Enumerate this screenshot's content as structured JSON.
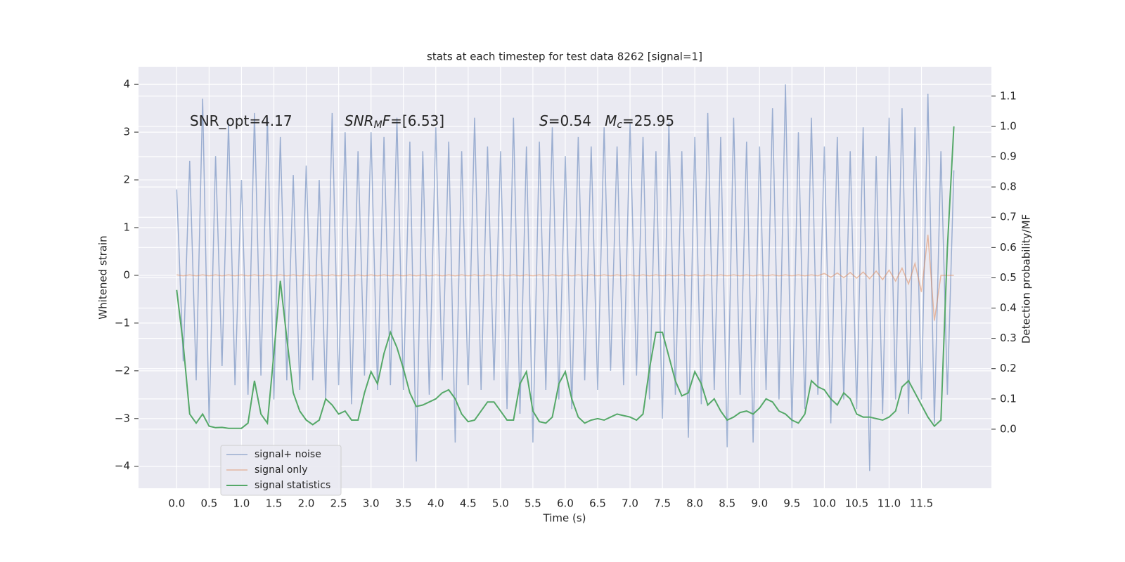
{
  "chart_data": {
    "type": "line",
    "title": "stats at each timestep for test data 8262 [signal=1]",
    "xlabel": "Time (s)",
    "ylabel": "Whitened strain",
    "y2label": "Detection probability/MF",
    "annotations": [
      [
        {
          "text": "SNR_opt=4.17",
          "style": "normal"
        }
      ],
      [
        {
          "text": "SNR",
          "style": "italic"
        },
        {
          "text": "M",
          "style": "sub"
        },
        {
          "text": "F",
          "style": "italic"
        },
        {
          "text": "=[6.53]",
          "style": "normal"
        }
      ],
      [
        {
          "text": "S",
          "style": "italic"
        },
        {
          "text": "=0.54   ",
          "style": "normal"
        },
        {
          "text": "M",
          "style": "italic"
        },
        {
          "text": "c",
          "style": "sub"
        },
        {
          "text": "=25.95",
          "style": "normal"
        }
      ]
    ],
    "x": [
      0,
      0.1,
      0.2,
      0.3,
      0.4,
      0.5,
      0.6,
      0.7,
      0.8,
      0.9,
      1,
      1.1,
      1.2,
      1.3,
      1.4,
      1.5,
      1.6,
      1.7,
      1.8,
      1.9,
      2,
      2.1,
      2.2,
      2.3,
      2.4,
      2.5,
      2.6,
      2.7,
      2.8,
      2.9,
      3,
      3.1,
      3.2,
      3.3,
      3.4,
      3.5,
      3.6,
      3.7,
      3.8,
      3.9,
      4,
      4.1,
      4.2,
      4.3,
      4.4,
      4.5,
      4.6,
      4.7,
      4.8,
      4.9,
      5,
      5.1,
      5.2,
      5.3,
      5.4,
      5.5,
      5.6,
      5.7,
      5.8,
      5.9,
      6,
      6.1,
      6.2,
      6.3,
      6.4,
      6.5,
      6.6,
      6.7,
      6.8,
      6.9,
      7,
      7.1,
      7.2,
      7.3,
      7.4,
      7.5,
      7.6,
      7.7,
      7.8,
      7.9,
      8,
      8.1,
      8.2,
      8.3,
      8.4,
      8.5,
      8.6,
      8.7,
      8.8,
      8.9,
      9,
      9.1,
      9.2,
      9.3,
      9.4,
      9.5,
      9.6,
      9.7,
      9.8,
      9.9,
      10,
      10.1,
      10.2,
      10.3,
      10.4,
      10.5,
      10.6,
      10.7,
      10.8,
      10.9,
      11,
      11.1,
      11.2,
      11.3,
      11.4,
      11.5,
      11.6,
      11.7,
      11.8,
      11.9,
      12
    ],
    "series": [
      {
        "name": "signal+ noise",
        "color": "#4c72b0",
        "values": [
          1.8,
          -1.8,
          2.4,
          -2.2,
          3.7,
          -3.1,
          2.5,
          -1.9,
          3.2,
          -2.3,
          2.0,
          -2.5,
          3.4,
          -2.1,
          3.3,
          -2.6,
          2.9,
          -2.2,
          2.1,
          -2.4,
          2.3,
          -2.2,
          2.0,
          -2.6,
          3.4,
          -2.3,
          3.0,
          -2.7,
          2.6,
          -2.1,
          3.0,
          -2.4,
          2.9,
          -2.3,
          3.3,
          -2.4,
          2.8,
          -3.9,
          2.6,
          -2.5,
          3.1,
          -2.2,
          2.8,
          -3.5,
          2.6,
          -2.3,
          3.3,
          -2.4,
          2.7,
          -2.2,
          2.6,
          -2.8,
          3.3,
          -2.9,
          2.7,
          -3.5,
          2.8,
          -2.4,
          3.1,
          -2.6,
          2.5,
          -2.8,
          2.9,
          -2.2,
          2.7,
          -2.4,
          3.1,
          -2.0,
          2.7,
          -2.3,
          3.2,
          -2.1,
          2.9,
          -2.6,
          2.6,
          -3.0,
          3.2,
          -2.5,
          2.6,
          -3.4,
          2.9,
          -2.7,
          3.4,
          -2.4,
          2.9,
          -3.6,
          3.3,
          -2.5,
          2.8,
          -3.5,
          2.7,
          -2.4,
          3.5,
          -2.6,
          4.0,
          -3.2,
          3.0,
          -2.8,
          3.3,
          -2.5,
          2.7,
          -3.1,
          2.9,
          -2.6,
          2.6,
          -2.8,
          3.1,
          -4.1,
          2.5,
          -2.9,
          3.3,
          -2.6,
          3.5,
          -2.9,
          3.1,
          -2.6,
          3.8,
          -3.1,
          2.6,
          -2.5,
          2.2
        ]
      },
      {
        "name": "signal only",
        "color": "#dd8452",
        "values": [
          0.01,
          -0.01,
          0.01,
          -0.01,
          0.01,
          -0.01,
          0.01,
          -0.01,
          0.01,
          -0.01,
          0.01,
          -0.01,
          0.01,
          -0.01,
          0.01,
          -0.01,
          0.01,
          -0.01,
          0.01,
          -0.01,
          0.01,
          -0.01,
          0.01,
          -0.01,
          0.01,
          -0.01,
          0.01,
          -0.01,
          0.01,
          -0.01,
          0.01,
          -0.01,
          0.01,
          -0.01,
          0.01,
          -0.01,
          0.01,
          -0.01,
          0.01,
          -0.01,
          0.01,
          -0.01,
          0.01,
          -0.01,
          0.01,
          -0.01,
          0.01,
          -0.01,
          0.01,
          -0.01,
          0.01,
          -0.01,
          0.01,
          -0.01,
          0.01,
          -0.01,
          0.01,
          -0.01,
          0.01,
          -0.01,
          0.01,
          -0.01,
          0.01,
          -0.01,
          0.01,
          -0.01,
          0.01,
          -0.01,
          0.01,
          -0.01,
          0.01,
          -0.01,
          0.01,
          -0.01,
          0.01,
          -0.01,
          0.01,
          -0.01,
          0.01,
          -0.01,
          0.01,
          -0.01,
          0.01,
          -0.01,
          0.01,
          -0.01,
          0.01,
          -0.01,
          0.01,
          -0.01,
          0.01,
          -0.01,
          0.01,
          -0.01,
          0.01,
          -0.01,
          0.01,
          -0.01,
          0.01,
          -0.01,
          0.04,
          -0.04,
          0.05,
          -0.05,
          0.06,
          -0.06,
          0.07,
          -0.07,
          0.09,
          -0.09,
          0.11,
          -0.12,
          0.15,
          -0.18,
          0.25,
          -0.35,
          0.85,
          -0.95,
          0,
          0,
          0
        ]
      },
      {
        "name": "signal statistics",
        "color": "#55a868",
        "axis": "y2",
        "values": [
          0.46,
          0.28,
          0.05,
          0.02,
          0.05,
          0.01,
          0.005,
          0.006,
          0.003,
          0.003,
          0.003,
          0.02,
          0.16,
          0.05,
          0.02,
          0.25,
          0.49,
          0.3,
          0.12,
          0.06,
          0.03,
          0.015,
          0.03,
          0.1,
          0.08,
          0.05,
          0.06,
          0.03,
          0.03,
          0.12,
          0.19,
          0.15,
          0.25,
          0.32,
          0.27,
          0.2,
          0.12,
          0.075,
          0.08,
          0.09,
          0.1,
          0.12,
          0.13,
          0.1,
          0.05,
          0.025,
          0.03,
          0.06,
          0.09,
          0.09,
          0.06,
          0.03,
          0.03,
          0.15,
          0.19,
          0.06,
          0.025,
          0.02,
          0.04,
          0.15,
          0.19,
          0.1,
          0.04,
          0.02,
          0.03,
          0.035,
          0.03,
          0.04,
          0.05,
          0.045,
          0.04,
          0.03,
          0.05,
          0.2,
          0.32,
          0.32,
          0.24,
          0.16,
          0.11,
          0.12,
          0.19,
          0.15,
          0.08,
          0.1,
          0.06,
          0.03,
          0.04,
          0.055,
          0.06,
          0.05,
          0.07,
          0.1,
          0.09,
          0.06,
          0.05,
          0.03,
          0.02,
          0.05,
          0.16,
          0.14,
          0.13,
          0.1,
          0.08,
          0.12,
          0.1,
          0.05,
          0.04,
          0.04,
          0.035,
          0.03,
          0.04,
          0.06,
          0.14,
          0.16,
          0.12,
          0.08,
          0.04,
          0.01,
          0.03,
          0.6,
          1.0
        ]
      }
    ],
    "xlim": [
      -0.59,
      12.58
    ],
    "xticks": [
      {
        "value": 0,
        "label": "0.0"
      },
      {
        "value": 0.5,
        "label": "0.5"
      },
      {
        "value": 1,
        "label": "1.0"
      },
      {
        "value": 1.5,
        "label": "1.5"
      },
      {
        "value": 2,
        "label": "2.0"
      },
      {
        "value": 2.5,
        "label": "2.5"
      },
      {
        "value": 3,
        "label": "3.0"
      },
      {
        "value": 3.5,
        "label": "3.5"
      },
      {
        "value": 4,
        "label": "4.0"
      },
      {
        "value": 4.5,
        "label": "4.5"
      },
      {
        "value": 5,
        "label": "5.0"
      },
      {
        "value": 5.5,
        "label": "5.5"
      },
      {
        "value": 6,
        "label": "6.0"
      },
      {
        "value": 6.5,
        "label": "6.5"
      },
      {
        "value": 7,
        "label": "7.0"
      },
      {
        "value": 7.5,
        "label": "7.5"
      },
      {
        "value": 8,
        "label": "8.0"
      },
      {
        "value": 8.5,
        "label": "8.5"
      },
      {
        "value": 9,
        "label": "9.0"
      },
      {
        "value": 9.5,
        "label": "9.5"
      },
      {
        "value": 10,
        "label": "10.0"
      },
      {
        "value": 10.5,
        "label": "10.5"
      },
      {
        "value": 11,
        "label": "11.0"
      },
      {
        "value": 11.5,
        "label": "11.5"
      }
    ],
    "ylim": [
      -4.46,
      4.37
    ],
    "yticks": [
      {
        "value": -4,
        "label": "−4"
      },
      {
        "value": -3,
        "label": "−3"
      },
      {
        "value": -2,
        "label": "−2"
      },
      {
        "value": -1,
        "label": "−1"
      },
      0,
      1,
      2,
      3,
      4
    ],
    "y2lim": [
      -0.195,
      1.197
    ],
    "y2ticks": [
      {
        "value": 0,
        "label": "0.0"
      },
      {
        "value": 0.1,
        "label": "0.1"
      },
      {
        "value": 0.2,
        "label": "0.2"
      },
      {
        "value": 0.3,
        "label": "0.3"
      },
      {
        "value": 0.4,
        "label": "0.4"
      },
      {
        "value": 0.5,
        "label": "0.5"
      },
      {
        "value": 0.6,
        "label": "0.6"
      },
      {
        "value": 0.7,
        "label": "0.7"
      },
      {
        "value": 0.8,
        "label": "0.8"
      },
      {
        "value": 0.9,
        "label": "0.9"
      },
      {
        "value": 1,
        "label": "1.0"
      },
      {
        "value": 1.1,
        "label": "1.1"
      }
    ],
    "grid": true,
    "legend": "lower left"
  }
}
